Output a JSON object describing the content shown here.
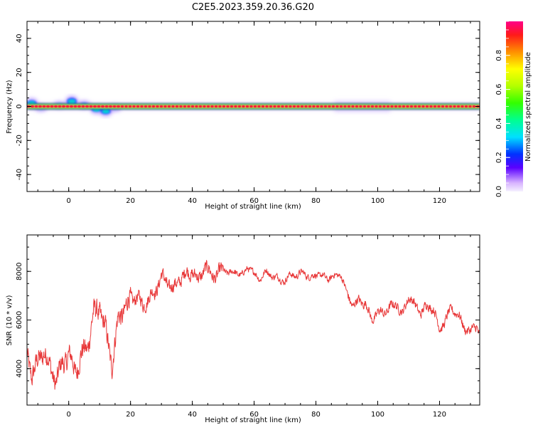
{
  "figure": {
    "title": "C2E5.2023.359.20.36.G20"
  },
  "chart_data": [
    {
      "type": "heatmap",
      "xlabel": "Height of straight line (km)",
      "ylabel": "Frequency (Hz)",
      "xlim": [
        -13.5,
        133
      ],
      "ylim": [
        -50,
        50
      ],
      "xticks": [
        0,
        20,
        40,
        60,
        80,
        100,
        120
      ],
      "yticks": [
        -40,
        -20,
        0,
        20,
        40
      ],
      "colorbar": {
        "label": "Normalized spectral amplitude",
        "range": [
          0,
          1
        ],
        "ticks": [
          0.0,
          0.2,
          0.4,
          0.6,
          0.8
        ]
      },
      "ridge": {
        "frequency_hz": 0,
        "x_range": [
          -13.5,
          133
        ],
        "peak_amplitude": 0.9,
        "noisy_segment_x": [
          -13.5,
          17
        ],
        "faint_halo_x": [
          86,
          104
        ]
      }
    },
    {
      "type": "line",
      "xlabel": "Height of straight line (km)",
      "ylabel": "SNR (10 * v/v)",
      "xlim": [
        -13.5,
        133
      ],
      "ylim": [
        2500,
        9500
      ],
      "xticks": [
        0,
        20,
        40,
        60,
        80,
        100,
        120
      ],
      "yticks": [
        4000,
        6000,
        8000
      ],
      "series": [
        {
          "color": "#e8393a",
          "x": [
            -13.5,
            -12,
            -10,
            -8,
            -6,
            -4,
            -2,
            0,
            2,
            4,
            6,
            8,
            10,
            12,
            14,
            16,
            18,
            20,
            22,
            24,
            26,
            28,
            30,
            32,
            34,
            36,
            38,
            40,
            42,
            44,
            46,
            48,
            50,
            52,
            54,
            56,
            58,
            60,
            62,
            64,
            66,
            68,
            70,
            72,
            74,
            76,
            78,
            80,
            82,
            84,
            86,
            88,
            90,
            92,
            94,
            96,
            98,
            100,
            102,
            104,
            106,
            108,
            110,
            112,
            114,
            116,
            118,
            120,
            122,
            124,
            126,
            128,
            130,
            132,
            133
          ],
          "y": [
            4500,
            3800,
            4200,
            4800,
            4000,
            3500,
            4200,
            4600,
            3900,
            4500,
            4900,
            6200,
            6500,
            5500,
            4200,
            6000,
            6500,
            6800,
            7000,
            6600,
            6900,
            7200,
            7800,
            7500,
            7300,
            7700,
            7900,
            8000,
            7600,
            8200,
            7900,
            7800,
            8100,
            7900,
            8000,
            7800,
            8200,
            7900,
            7700,
            8000,
            7800,
            7700,
            7600,
            7900,
            7800,
            8000,
            7700,
            7900,
            7800,
            7700,
            7800,
            7900,
            7100,
            6600,
            6800,
            6700,
            6000,
            6300,
            6300,
            6500,
            6700,
            6200,
            7000,
            6600,
            6300,
            6600,
            6500,
            5600,
            6000,
            6500,
            6200,
            5700,
            5500,
            5800,
            5400
          ]
        }
      ]
    }
  ],
  "colors": {
    "snr_line": "#e8393a",
    "axes": "#000000",
    "background": "#ffffff"
  }
}
